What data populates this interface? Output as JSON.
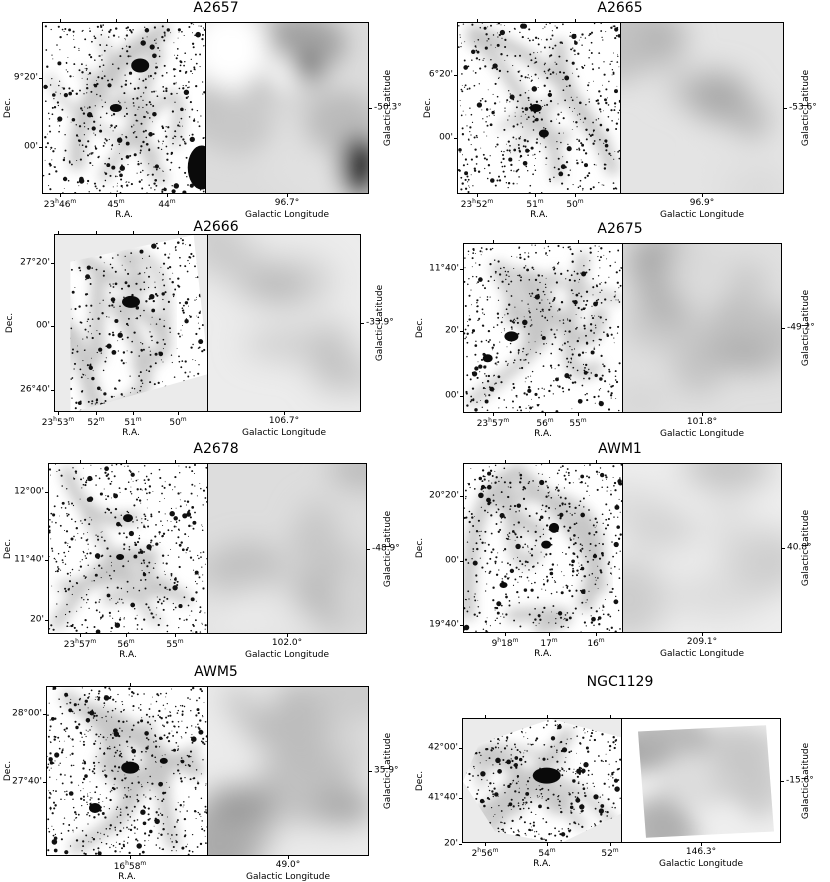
{
  "panels": [
    {
      "name": "A2657",
      "lat": "-50.3°",
      "lon": "96.7°",
      "dec": [
        "9°20'",
        "00'"
      ],
      "ra": [
        "23h46m",
        "45m",
        "44m"
      ],
      "ra_label": "R.A.",
      "dec_label": "Dec.",
      "glon_label": "Galactic Longitude",
      "glat_label": "Galactic Latitude"
    },
    {
      "name": "A2665",
      "lat": "-53.6°",
      "lon": "96.9°",
      "dec": [
        "6°20'",
        "00'"
      ],
      "ra": [
        "23h52m",
        "51m",
        "50m"
      ],
      "ra_label": "R.A.",
      "dec_label": "Dec.",
      "glon_label": "Galactic Longitude",
      "glat_label": "Galactic Latitude"
    },
    {
      "name": "A2666",
      "lat": "-33.9°",
      "lon": "106.7°",
      "dec": [
        "27°20'",
        "00'",
        "26°40'"
      ],
      "ra": [
        "23h53m",
        "52m",
        "51m",
        "50m"
      ],
      "ra_label": "R.A.",
      "dec_label": "Dec.",
      "glon_label": "Galactic Longitude",
      "glat_label": "Galactic Latitude"
    },
    {
      "name": "A2675",
      "lat": "-49.2°",
      "lon": "101.8°",
      "dec": [
        "11°40'",
        "20'",
        "00'"
      ],
      "ra": [
        "23h57m",
        "56m",
        "55m"
      ],
      "ra_label": "R.A.",
      "dec_label": "Dec.",
      "glon_label": "Galactic Longitude",
      "glat_label": "Galactic Latitude"
    },
    {
      "name": "A2678",
      "lat": "-48.9°",
      "lon": "102.0°",
      "dec": [
        "12°00'",
        "11°40'",
        "20'"
      ],
      "ra": [
        "23h57m",
        "56m",
        "55m"
      ],
      "ra_label": "R.A.",
      "dec_label": "Dec.",
      "glon_label": "Galactic Longitude",
      "glat_label": "Galactic Latitude"
    },
    {
      "name": "AWM1",
      "lat": "40.8°",
      "lon": "209.1°",
      "dec": [
        "20°20'",
        "00'",
        "19°40'"
      ],
      "ra": [
        "9h18m",
        "17m",
        "16m"
      ],
      "ra_label": "R.A.",
      "dec_label": "Dec.",
      "glon_label": "Galactic Longitude",
      "glat_label": "Galactic Latitude"
    },
    {
      "name": "AWM5",
      "lat": "35.9°",
      "lon": "49.0°",
      "dec": [
        "28°00'",
        "27°40'"
      ],
      "ra": [
        "16h58m"
      ],
      "ra_label": "R.A.",
      "dec_label": "Dec.",
      "glon_label": "Galactic Longitude",
      "glat_label": "Galactic Latitude"
    },
    {
      "name": "NGC1129",
      "lat": "-15.6°",
      "lon": "146.3°",
      "dec": [
        "42°00'",
        "41°40'",
        "20'"
      ],
      "ra": [
        "2h56m",
        "54m",
        "52m"
      ],
      "ra_label": "R.A.",
      "dec_label": "Dec.",
      "glon_label": "Galactic Longitude",
      "glat_label": "Galactic Latitude"
    }
  ]
}
